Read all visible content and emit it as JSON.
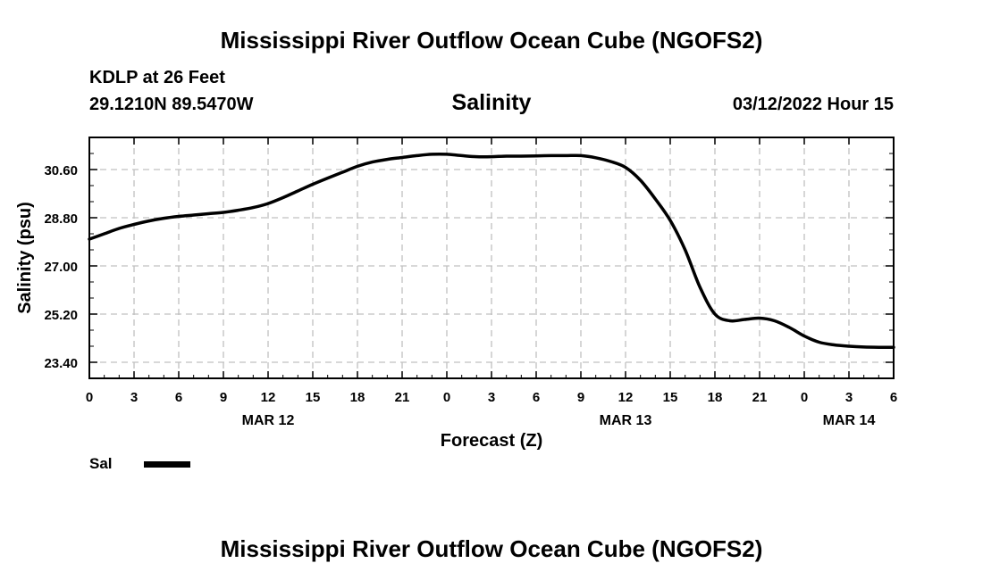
{
  "page": {
    "title_top": "Mississippi River Outflow Ocean Cube (NGOFS2)",
    "title_bottom": "Mississippi River Outflow Ocean Cube (NGOFS2)"
  },
  "station": {
    "name": "KDLP at 26 Feet",
    "coords": "29.1210N  89.5470W",
    "datetime": "03/12/2022 Hour 15"
  },
  "legend": {
    "label": "Sal"
  },
  "colors": {
    "line": "#000000",
    "grid": "#c0c0c0"
  },
  "chart_data": {
    "type": "line",
    "title": "Salinity",
    "xlabel": "Forecast (Z)",
    "ylabel": "Salinity (psu)",
    "xlim": [
      0,
      54
    ],
    "ylim": [
      22.8,
      31.8
    ],
    "x_ticks": [
      0,
      3,
      6,
      9,
      12,
      15,
      18,
      21,
      24,
      27,
      30,
      33,
      36,
      39,
      42,
      45,
      48,
      51,
      54
    ],
    "x_tick_labels": [
      "0",
      "3",
      "6",
      "9",
      "12",
      "15",
      "18",
      "21",
      "0",
      "3",
      "6",
      "9",
      "12",
      "15",
      "18",
      "21",
      "0",
      "3",
      "6"
    ],
    "date_labels": [
      {
        "x": 12,
        "label": "MAR 12"
      },
      {
        "x": 36,
        "label": "MAR 13"
      },
      {
        "x": 51,
        "label": "MAR 14"
      }
    ],
    "y_ticks": [
      23.4,
      25.2,
      27.0,
      28.8,
      30.6
    ],
    "y_tick_labels": [
      "23.40",
      "25.20",
      "27.00",
      "28.80",
      "30.60"
    ],
    "grid": true,
    "series": [
      {
        "name": "Sal",
        "x": [
          0,
          1,
          2,
          3,
          4,
          5,
          6,
          7,
          8,
          9,
          10,
          11,
          12,
          13,
          14,
          15,
          16,
          17,
          18,
          19,
          20,
          21,
          22,
          23,
          24,
          25,
          26,
          27,
          28,
          29,
          30,
          31,
          32,
          33,
          34,
          35,
          36,
          37,
          38,
          39,
          40,
          41,
          42,
          43,
          44,
          45,
          46,
          47,
          48,
          49,
          50,
          51,
          52,
          53,
          54
        ],
        "values": [
          28.0,
          28.2,
          28.4,
          28.55,
          28.68,
          28.78,
          28.85,
          28.9,
          28.95,
          29.0,
          29.08,
          29.18,
          29.33,
          29.55,
          29.8,
          30.05,
          30.28,
          30.5,
          30.72,
          30.88,
          30.98,
          31.05,
          31.12,
          31.17,
          31.17,
          31.12,
          31.08,
          31.08,
          31.1,
          31.1,
          31.11,
          31.12,
          31.12,
          31.12,
          31.04,
          30.9,
          30.68,
          30.2,
          29.5,
          28.7,
          27.6,
          26.2,
          25.2,
          24.95,
          25.0,
          25.05,
          24.95,
          24.7,
          24.38,
          24.15,
          24.05,
          24.0,
          23.97,
          23.96,
          23.96
        ]
      }
    ]
  }
}
